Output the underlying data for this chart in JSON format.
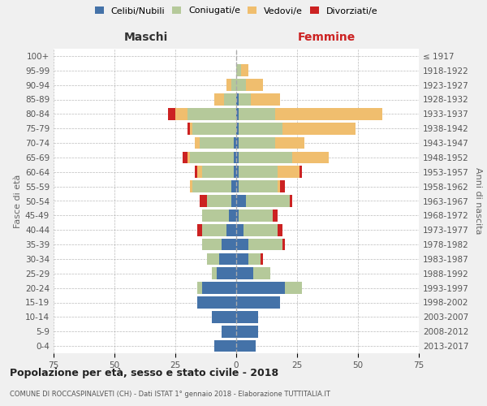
{
  "age_groups": [
    "0-4",
    "5-9",
    "10-14",
    "15-19",
    "20-24",
    "25-29",
    "30-34",
    "35-39",
    "40-44",
    "45-49",
    "50-54",
    "55-59",
    "60-64",
    "65-69",
    "70-74",
    "75-79",
    "80-84",
    "85-89",
    "90-94",
    "95-99",
    "100+"
  ],
  "birth_years": [
    "2013-2017",
    "2008-2012",
    "2003-2007",
    "1998-2002",
    "1993-1997",
    "1988-1992",
    "1983-1987",
    "1978-1982",
    "1973-1977",
    "1968-1972",
    "1963-1967",
    "1958-1962",
    "1953-1957",
    "1948-1952",
    "1943-1947",
    "1938-1942",
    "1933-1937",
    "1928-1932",
    "1923-1927",
    "1918-1922",
    "≤ 1917"
  ],
  "maschi": {
    "celibi": [
      9,
      6,
      10,
      16,
      14,
      8,
      7,
      6,
      4,
      3,
      2,
      2,
      1,
      1,
      1,
      0,
      0,
      0,
      0,
      0,
      0
    ],
    "coniugati": [
      0,
      0,
      0,
      0,
      2,
      2,
      5,
      8,
      10,
      11,
      10,
      16,
      13,
      18,
      14,
      18,
      20,
      5,
      2,
      0,
      0
    ],
    "vedovi": [
      0,
      0,
      0,
      0,
      0,
      0,
      0,
      0,
      0,
      0,
      0,
      1,
      2,
      1,
      2,
      1,
      5,
      4,
      2,
      0,
      0
    ],
    "divorziati": [
      0,
      0,
      0,
      0,
      0,
      0,
      0,
      0,
      2,
      0,
      3,
      0,
      1,
      2,
      0,
      1,
      3,
      0,
      0,
      0,
      0
    ]
  },
  "femmine": {
    "nubili": [
      8,
      9,
      9,
      18,
      20,
      7,
      5,
      5,
      3,
      1,
      4,
      1,
      1,
      1,
      1,
      1,
      1,
      1,
      0,
      0,
      0
    ],
    "coniugate": [
      0,
      0,
      0,
      0,
      7,
      7,
      5,
      14,
      14,
      14,
      18,
      16,
      16,
      22,
      15,
      18,
      15,
      5,
      4,
      2,
      0
    ],
    "vedove": [
      0,
      0,
      0,
      0,
      0,
      0,
      0,
      0,
      0,
      0,
      0,
      1,
      9,
      15,
      12,
      30,
      44,
      12,
      7,
      3,
      0
    ],
    "divorziate": [
      0,
      0,
      0,
      0,
      0,
      0,
      1,
      1,
      2,
      2,
      1,
      2,
      1,
      0,
      0,
      0,
      0,
      0,
      0,
      0,
      0
    ]
  },
  "colors": {
    "celibi_nubili": "#4472a8",
    "coniugati": "#b5c99a",
    "vedovi": "#f0be6e",
    "divorziati": "#cc2222"
  },
  "title": "Popolazione per età, sesso e stato civile - 2018",
  "subtitle": "COMUNE DI ROCCASPINALVETI (CH) - Dati ISTAT 1° gennaio 2018 - Elaborazione TUTTITALIA.IT",
  "header_left": "Maschi",
  "header_right": "Femmine",
  "ylabel_left": "Fasce di età",
  "ylabel_right": "Anni di nascita",
  "xlim": 75,
  "legend_labels": [
    "Celibi/Nubili",
    "Coniugati/e",
    "Vedovi/e",
    "Divorziati/e"
  ],
  "background_color": "#f0f0f0",
  "plot_background": "#ffffff"
}
